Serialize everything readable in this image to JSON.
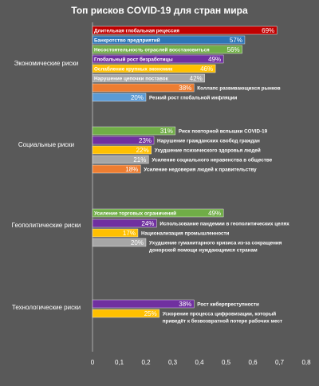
{
  "chart_data": {
    "type": "bar",
    "orientation": "horizontal",
    "title": "Топ рисков COVID-19 для стран мира",
    "xlim": [
      0,
      0.8
    ],
    "x_ticks": [
      "0",
      "0,1",
      "0,2",
      "0,3",
      "0,4",
      "0,5",
      "0,6",
      "0,7",
      "0,8"
    ],
    "grid": false,
    "legend": "none",
    "groups": [
      {
        "name": "Экономические риски",
        "items": [
          {
            "label": "Длительная глобальная рецессия",
            "value": 0.69,
            "value_label": "69%",
            "color": "#c00000"
          },
          {
            "label": "Банкротство предприятий",
            "value": 0.57,
            "value_label": "57%",
            "color": "#2e75b6"
          },
          {
            "label": "Несостоятельность отраслей восстановиться",
            "value": 0.56,
            "value_label": "56%",
            "color": "#70ad47"
          },
          {
            "label": "Глобальный рост безработицы",
            "value": 0.49,
            "value_label": "49%",
            "color": "#7030a0"
          },
          {
            "label": "Ослабление крупных экономик",
            "value": 0.46,
            "value_label": "46%",
            "color": "#ffc000"
          },
          {
            "label": "Нарушение цепочки поставок",
            "value": 0.42,
            "value_label": "42%",
            "color": "#a6a6a6"
          },
          {
            "label": "Коллапс развивающихся рынков",
            "value": 0.38,
            "value_label": "38%",
            "color": "#ed7d31"
          },
          {
            "label": "Резкий рост глобальной инфляции",
            "value": 0.2,
            "value_label": "20%",
            "color": "#5b9bd5"
          }
        ]
      },
      {
        "name": "Социальные риски",
        "items": [
          {
            "label": "Риск повторной вспышки COVID-19",
            "value": 0.31,
            "value_label": "31%",
            "color": "#70ad47"
          },
          {
            "label": "Нарушение гражданских свобод граждан",
            "value": 0.23,
            "value_label": "23%",
            "color": "#7030a0"
          },
          {
            "label": "Ухудшение психического здоровья людей",
            "value": 0.22,
            "value_label": "22%",
            "color": "#ffc000"
          },
          {
            "label": "Усиление социального неравенства в обществе",
            "value": 0.21,
            "value_label": "21%",
            "color": "#a6a6a6"
          },
          {
            "label": "Усиление недоверия людей к правительству",
            "value": 0.18,
            "value_label": "18%",
            "color": "#ed7d31"
          }
        ]
      },
      {
        "name": "Геополитические риски",
        "items": [
          {
            "label": "Усиление торговых ограничений",
            "value": 0.49,
            "value_label": "49%",
            "color": "#70ad47"
          },
          {
            "label": "Использование пандемии в геополитических целях",
            "value": 0.24,
            "value_label": "24%",
            "color": "#7030a0"
          },
          {
            "label": "Национализация промышленности",
            "value": 0.17,
            "value_label": "17%",
            "color": "#ffc000"
          },
          {
            "label": "Ухудшение гуманитарного кризиса из-за сокращения донорской помощи нуждающимся странам",
            "label_lines": [
              "Ухудшение гуманитарного кризиса из-за сокращения",
              "донорской помощи нуждающимся странам"
            ],
            "value": 0.2,
            "value_label": "20%",
            "color": "#a6a6a6"
          }
        ]
      },
      {
        "name": "Технологические риски",
        "items": [
          {
            "label": "Рост киберпреступности",
            "value": 0.38,
            "value_label": "38%",
            "color": "#7030a0"
          },
          {
            "label": "Ускорение процесса цифровизации, который приведёт к безвозвратной потере рабочих мест",
            "label_lines": [
              "Ускорение процесса цифровизации, который",
              "приведёт к безвозвратной потере рабочих мест"
            ],
            "value": 0.25,
            "value_label": "25%",
            "color": "#ffc000"
          }
        ]
      }
    ]
  }
}
